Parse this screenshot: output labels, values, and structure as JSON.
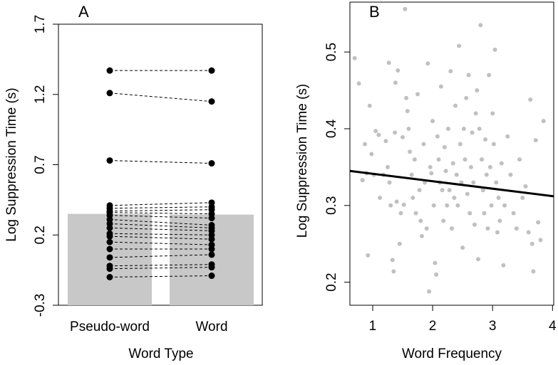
{
  "chart_data": [
    {
      "type": "bar",
      "panel_label": "A",
      "xlabel": "Word Type",
      "ylabel": "Log Suppression Time (s)",
      "ylim": [
        -0.3,
        1.7
      ],
      "yticks": [
        "-0.3",
        "0.2",
        "0.7",
        "1.2",
        "1.7"
      ],
      "categories": [
        "Pseudo-word",
        "Word"
      ],
      "values": [
        0.35,
        0.345
      ],
      "bar_color": "#c8c8c8",
      "paired_points": [
        [
          1.37,
          1.37
        ],
        [
          1.21,
          1.15
        ],
        [
          0.73,
          0.71
        ],
        [
          0.41,
          0.43
        ],
        [
          0.39,
          0.4
        ],
        [
          0.37,
          0.38
        ],
        [
          0.36,
          0.35
        ],
        [
          0.34,
          0.32
        ],
        [
          0.31,
          0.27
        ],
        [
          0.28,
          0.25
        ],
        [
          0.25,
          0.23
        ],
        [
          0.21,
          0.2
        ],
        [
          0.19,
          0.17
        ],
        [
          0.15,
          0.13
        ],
        [
          0.1,
          0.1
        ],
        [
          0.04,
          0.06
        ],
        [
          -0.02,
          -0.01
        ],
        [
          -0.04,
          -0.03
        ],
        [
          -0.1,
          -0.09
        ]
      ],
      "grid": false
    },
    {
      "type": "scatter",
      "panel_label": "B",
      "xlabel": "Word Frequency",
      "ylabel": "Log Suppression Time (s)",
      "xlim": [
        0.62,
        4.02
      ],
      "ylim": [
        0.17,
        0.565
      ],
      "xticks": [
        "1",
        "2",
        "3",
        "4"
      ],
      "yticks": [
        "0.2",
        "0.3",
        "0.4",
        "0.5"
      ],
      "point_color": "#c0c0c0",
      "points": [
        [
          0.7,
          0.492
        ],
        [
          0.77,
          0.459
        ],
        [
          0.83,
          0.333
        ],
        [
          0.87,
          0.38
        ],
        [
          0.9,
          0.342
        ],
        [
          0.92,
          0.235
        ],
        [
          0.95,
          0.43
        ],
        [
          0.98,
          0.367
        ],
        [
          1.02,
          0.34
        ],
        [
          1.05,
          0.397
        ],
        [
          1.1,
          0.392
        ],
        [
          1.12,
          0.31
        ],
        [
          1.18,
          0.34
        ],
        [
          1.22,
          0.384
        ],
        [
          1.25,
          0.35
        ],
        [
          1.27,
          0.486
        ],
        [
          1.28,
          0.33
        ],
        [
          1.3,
          0.3
        ],
        [
          1.33,
          0.229
        ],
        [
          1.35,
          0.214
        ],
        [
          1.37,
          0.395
        ],
        [
          1.38,
          0.46
        ],
        [
          1.4,
          0.305
        ],
        [
          1.42,
          0.476
        ],
        [
          1.45,
          0.25
        ],
        [
          1.47,
          0.29
        ],
        [
          1.5,
          0.389
        ],
        [
          1.52,
          0.301
        ],
        [
          1.54,
          0.556
        ],
        [
          1.56,
          0.44
        ],
        [
          1.58,
          0.423
        ],
        [
          1.6,
          0.4
        ],
        [
          1.62,
          0.37
        ],
        [
          1.65,
          0.34
        ],
        [
          1.67,
          0.31
        ],
        [
          1.7,
          0.36
        ],
        [
          1.72,
          0.29
        ],
        [
          1.75,
          0.445
        ],
        [
          1.78,
          0.32
        ],
        [
          1.8,
          0.28
        ],
        [
          1.82,
          0.26
        ],
        [
          1.85,
          0.38
        ],
        [
          1.87,
          0.33
        ],
        [
          1.9,
          0.27
        ],
        [
          1.92,
          0.485
        ],
        [
          1.94,
          0.188
        ],
        [
          1.96,
          0.35
        ],
        [
          1.98,
          0.342
        ],
        [
          2.0,
          0.41
        ],
        [
          2.02,
          0.3
        ],
        [
          2.04,
          0.225
        ],
        [
          2.06,
          0.21
        ],
        [
          2.08,
          0.39
        ],
        [
          2.1,
          0.36
        ],
        [
          2.12,
          0.33
        ],
        [
          2.14,
          0.455
        ],
        [
          2.16,
          0.32
        ],
        [
          2.18,
          0.28
        ],
        [
          2.2,
          0.376
        ],
        [
          2.22,
          0.345
        ],
        [
          2.24,
          0.3
        ],
        [
          2.26,
          0.4
        ],
        [
          2.28,
          0.32
        ],
        [
          2.3,
          0.475
        ],
        [
          2.32,
          0.27
        ],
        [
          2.34,
          0.355
        ],
        [
          2.36,
          0.31
        ],
        [
          2.38,
          0.43
        ],
        [
          2.4,
          0.34
        ],
        [
          2.42,
          0.3
        ],
        [
          2.44,
          0.508
        ],
        [
          2.46,
          0.38
        ],
        [
          2.48,
          0.33
        ],
        [
          2.5,
          0.245
        ],
        [
          2.52,
          0.4
        ],
        [
          2.54,
          0.36
        ],
        [
          2.56,
          0.44
        ],
        [
          2.58,
          0.315
        ],
        [
          2.6,
          0.47
        ],
        [
          2.62,
          0.29
        ],
        [
          2.64,
          0.35
        ],
        [
          2.66,
          0.395
        ],
        [
          2.68,
          0.33
        ],
        [
          2.7,
          0.275
        ],
        [
          2.72,
          0.42
        ],
        [
          2.74,
          0.45
        ],
        [
          2.76,
          0.23
        ],
        [
          2.78,
          0.4
        ],
        [
          2.8,
          0.535
        ],
        [
          2.82,
          0.36
        ],
        [
          2.84,
          0.32
        ],
        [
          2.86,
          0.29
        ],
        [
          2.88,
          0.386
        ],
        [
          2.9,
          0.34
        ],
        [
          2.92,
          0.27
        ],
        [
          2.94,
          0.47
        ],
        [
          2.96,
          0.35
        ],
        [
          2.98,
          0.3
        ],
        [
          3.0,
          0.42
        ],
        [
          3.02,
          0.38
        ],
        [
          3.04,
          0.503
        ],
        [
          3.06,
          0.33
        ],
        [
          3.08,
          0.265
        ],
        [
          3.1,
          0.31
        ],
        [
          3.12,
          0.28
        ],
        [
          3.15,
          0.355
        ],
        [
          3.18,
          0.222
        ],
        [
          3.2,
          0.3
        ],
        [
          3.25,
          0.39
        ],
        [
          3.3,
          0.34
        ],
        [
          3.35,
          0.29
        ],
        [
          3.4,
          0.27
        ],
        [
          3.45,
          0.36
        ],
        [
          3.5,
          0.31
        ],
        [
          3.55,
          0.325
        ],
        [
          3.6,
          0.265
        ],
        [
          3.63,
          0.438
        ],
        [
          3.66,
          0.25
        ],
        [
          3.68,
          0.214
        ],
        [
          3.72,
          0.385
        ],
        [
          3.76,
          0.278
        ],
        [
          3.8,
          0.255
        ],
        [
          3.85,
          0.41
        ]
      ],
      "regression": {
        "x": [
          0.62,
          4.02
        ],
        "y": [
          0.345,
          0.312
        ]
      },
      "grid": false
    }
  ]
}
